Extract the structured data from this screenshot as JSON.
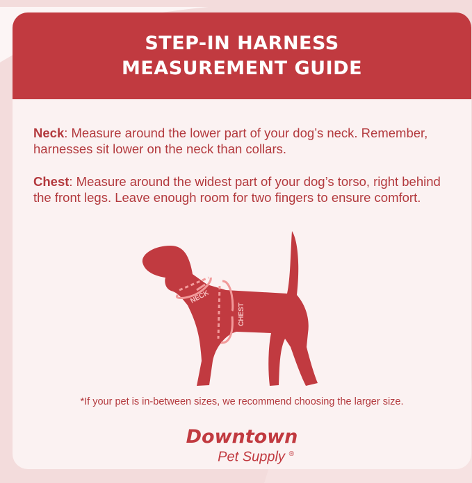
{
  "title_line1": "STEP-IN HARNESS",
  "title_line2": "MEASUREMENT GUIDE",
  "neck": {
    "label": "Neck",
    "text": ": Measure around the lower part of your dog’s neck. Remember, harnesses sit lower on the neck than collars."
  },
  "chest": {
    "label": "Chest",
    "text": ": Measure around the widest part of your dog’s torso, right behind the front legs. Leave enough room for two fingers to ensure comfort."
  },
  "diagram": {
    "neck_label": "NECK",
    "chest_label": "CHEST"
  },
  "note": "*If your pet is in-between sizes, we recommend choosing the larger size.",
  "logo": {
    "line1": "Downtown",
    "line2": "Pet Supply",
    "mark": "®"
  },
  "colors": {
    "brand_red": "#c13a40",
    "text_red": "#b33a3e",
    "accent_pink": "#f19a9a",
    "card_bg": "#fbf2f2"
  }
}
